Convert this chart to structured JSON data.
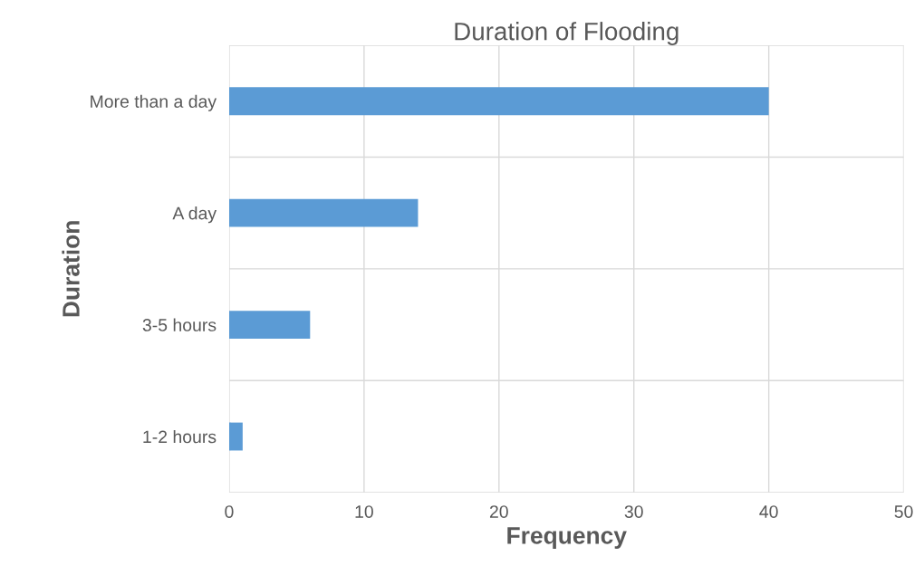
{
  "chart_data": {
    "type": "bar",
    "orientation": "horizontal",
    "title": "Duration of Flooding",
    "xlabel": "Frequency",
    "ylabel": "Duration",
    "categories": [
      "More than a day",
      "A day",
      "3-5 hours",
      "1-2 hours"
    ],
    "values": [
      40,
      14,
      6,
      1
    ],
    "color": "#5b9bd5",
    "xlim": [
      0,
      50
    ],
    "xticks": [
      0,
      10,
      20,
      30,
      40,
      50
    ],
    "grid": true,
    "legend": false
  }
}
